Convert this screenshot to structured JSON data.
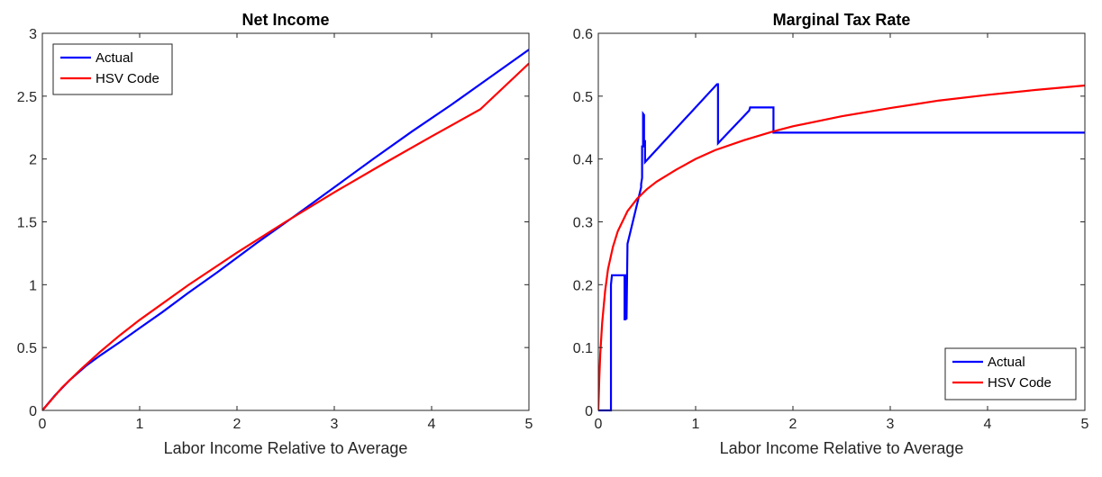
{
  "colors": {
    "actual": "#0000ff",
    "hsv": "#ff0000",
    "axis": "#262626",
    "background": "#ffffff"
  },
  "chart_data": [
    {
      "type": "line",
      "title": "Net Income",
      "xlabel": "Labor Income Relative to Average",
      "ylabel": "",
      "xlim": [
        0,
        5
      ],
      "ylim": [
        0,
        3
      ],
      "xticks": [
        0,
        1,
        2,
        3,
        4,
        5
      ],
      "xtick_labels": [
        "0",
        "1",
        "2",
        "3",
        "4",
        "5"
      ],
      "yticks": [
        0,
        0.5,
        1,
        1.5,
        2,
        2.5,
        3
      ],
      "ytick_labels": [
        "0",
        "0.5",
        "1",
        "1.5",
        "2",
        "2.5",
        "3"
      ],
      "grid": false,
      "legend": "top-left",
      "series": [
        {
          "name": "Actual",
          "color": "#0000ff",
          "x": [
            0,
            0.13,
            0.28,
            0.45,
            0.6,
            0.8,
            1.0,
            1.23,
            1.5,
            1.8,
            2.2,
            2.6,
            3.0,
            3.4,
            3.8,
            4.2,
            4.6,
            5.0
          ],
          "y": [
            0,
            0.12,
            0.24,
            0.355,
            0.44,
            0.545,
            0.655,
            0.78,
            0.935,
            1.1,
            1.33,
            1.55,
            1.775,
            2.0,
            2.22,
            2.43,
            2.65,
            2.87
          ]
        },
        {
          "name": "HSV Code",
          "color": "#ff0000",
          "x": [
            0,
            0.1,
            0.2,
            0.4,
            0.6,
            0.8,
            1.0,
            1.5,
            2.0,
            2.5,
            3.0,
            3.5,
            4.0,
            4.5,
            5.0
          ],
          "y": [
            0,
            0.09,
            0.18,
            0.33,
            0.47,
            0.6,
            0.72,
            0.997,
            1.255,
            1.5,
            1.735,
            1.96,
            2.18,
            2.395,
            2.76
          ]
        }
      ]
    },
    {
      "type": "line",
      "title": "Marginal Tax Rate",
      "xlabel": "Labor Income Relative to Average",
      "ylabel": "",
      "xlim": [
        0,
        5
      ],
      "ylim": [
        0,
        0.6
      ],
      "xticks": [
        0,
        1,
        2,
        3,
        4,
        5
      ],
      "xtick_labels": [
        "0",
        "1",
        "2",
        "3",
        "4",
        "5"
      ],
      "yticks": [
        0,
        0.1,
        0.2,
        0.3,
        0.4,
        0.5,
        0.6
      ],
      "ytick_labels": [
        "0",
        "0.1",
        "0.2",
        "0.3",
        "0.4",
        "0.5",
        "0.6"
      ],
      "grid": false,
      "legend": "bottom-right",
      "series": [
        {
          "name": "Actual",
          "color": "#0000ff",
          "x": [
            0,
            0.13,
            0.13,
            0.14,
            0.27,
            0.27,
            0.28,
            0.28,
            0.29,
            0.29,
            0.3,
            0.44,
            0.44,
            0.45,
            0.45,
            0.46,
            0.46,
            0.47,
            0.47,
            0.48,
            0.48,
            1.22,
            1.23,
            1.23,
            1.55,
            1.56,
            1.57,
            1.8,
            1.8,
            5.0
          ],
          "y": [
            0,
            0,
            0.2,
            0.215,
            0.215,
            0.145,
            0.145,
            0.215,
            0.215,
            0.145,
            0.265,
            0.355,
            0.36,
            0.37,
            0.42,
            0.42,
            0.472,
            0.47,
            0.425,
            0.43,
            0.395,
            0.519,
            0.519,
            0.425,
            0.477,
            0.482,
            0.482,
            0.482,
            0.442,
            0.442
          ]
        },
        {
          "name": "HSV Code",
          "color": "#ff0000",
          "x": [
            0,
            0.01,
            0.02,
            0.04,
            0.07,
            0.1,
            0.15,
            0.2,
            0.3,
            0.4,
            0.5,
            0.6,
            0.8,
            1.0,
            1.2,
            1.5,
            1.8,
            2.0,
            2.5,
            3.0,
            3.5,
            4.0,
            4.5,
            5.0
          ],
          "y": [
            0,
            0.05,
            0.09,
            0.14,
            0.19,
            0.225,
            0.26,
            0.285,
            0.317,
            0.337,
            0.352,
            0.364,
            0.383,
            0.4,
            0.414,
            0.43,
            0.444,
            0.452,
            0.468,
            0.481,
            0.493,
            0.502,
            0.51,
            0.517
          ]
        }
      ]
    }
  ]
}
